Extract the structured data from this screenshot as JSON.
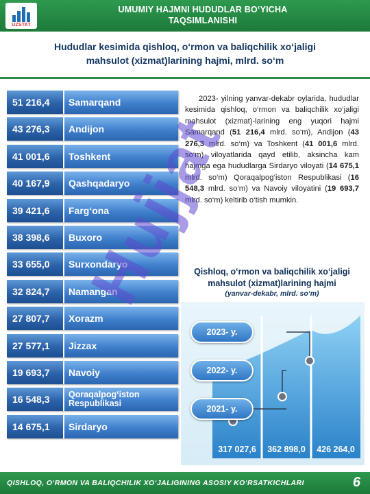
{
  "header": {
    "logo_text": "UZSTAT",
    "title_line1": "UMUMIY HAJMNI HUDUDLAR BO‘YICHA",
    "title_line2": "TAQSIMLANISHI"
  },
  "subtitle": {
    "line1": "Hududlar kesimida qishloq, o‘rmon va baliqchilik xo‘jaligi",
    "line2": "mahsulot (xizmat)larining hajmi, mlrd. so‘m"
  },
  "ranking": [
    {
      "value": "51 216,4",
      "name": "Samarqand"
    },
    {
      "value": "43 276,3",
      "name": "Andijon"
    },
    {
      "value": "41 001,6",
      "name": "Toshkent"
    },
    {
      "value": "40 167,9",
      "name": "Qashqadaryo"
    },
    {
      "value": "39 421,6",
      "name": "Farg‘ona"
    },
    {
      "value": "38 398,6",
      "name": "Buxoro"
    },
    {
      "value": "33 655,0",
      "name": "Surxondaryo"
    },
    {
      "value": "32 824,7",
      "name": "Namangan"
    },
    {
      "value": "27 807,7",
      "name": "Xorazm"
    },
    {
      "value": "27 577,1",
      "name": "Jizzax"
    },
    {
      "value": "19 693,7",
      "name": "Navoiy"
    },
    {
      "value": "16 548,3",
      "name": "Qoraqalpog‘iston Respublikasi"
    },
    {
      "value": "14 675,1",
      "name": "Sirdaryo"
    }
  ],
  "description": {
    "t1": "2023- yilning yanvar-dekabr oylarida, hududlar kesimida qishloq, o‘rmon va baliqchilik xo‘jaligi mahsulot (xizmat)-larining eng yuqori hajmi Samarqand (",
    "b1": "51 216,4",
    "t2": " mlrd. so‘m), Andijon (",
    "b2": "43 276,3",
    "t3": " mlrd. so‘m) va Toshkent (",
    "b3": "41 001,6",
    "t4": " mlrd. so‘m) viloyatlarida qayd etilib, aksincha kam hajmga ega hududlarga Sirdaryo viloyati (",
    "b4": "14 675,1",
    "t5": " mlrd. so‘m) Qoraqalpog‘iston Respublikasi (",
    "b5": "16 548,3",
    "t6": " mlrd. so‘m) va Navoiy viloyatini (",
    "b6": "19 693,7",
    "t7": " mlrd. so‘m) keltirib o‘tish mumkin."
  },
  "chart_data": {
    "type": "bar",
    "title": "Qishloq, o‘rmon va baliqchilik xo‘jaligi mahsulot (xizmat)larining hajmi",
    "subtitle": "(yanvar-dekabr, mlrd. so‘m)",
    "categories": [
      "2021- y.",
      "2022- y.",
      "2023- y."
    ],
    "values": [
      317027.6,
      362898.0,
      426264.0
    ],
    "value_labels": [
      "317 027,6",
      "362 898,0",
      "426 264,0"
    ],
    "ylim": [
      0,
      450000
    ],
    "colors": {
      "bar_light": "#8ed1f5",
      "bar_dark": "#2a82c9",
      "line": "#2c3e5a"
    }
  },
  "watermark": "Hujjat",
  "footer": {
    "text": "QISHLOQ, O‘RMON VA BALIQCHILIK XO‘JALIGINING ASOSIY KO‘RSATKICHLARI",
    "page": "6"
  }
}
